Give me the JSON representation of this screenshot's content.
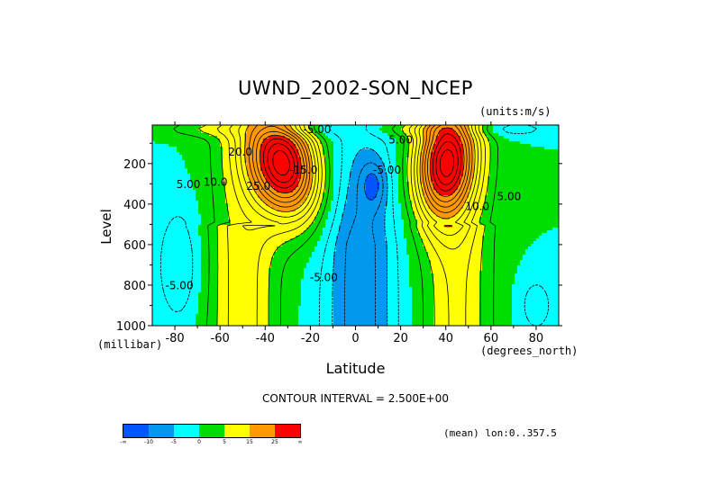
{
  "chart_data": {
    "type": "contour",
    "title": "UWND_2002-SON_NCEP",
    "units_label": "(units:m/s)",
    "xlabel": "Latitude",
    "ylabel": "Level",
    "x_units_label": "(degrees_north)",
    "y_units_label": "(millibar)",
    "xlim": [
      -90,
      90
    ],
    "ylim": [
      1000,
      10
    ],
    "y_inverted": true,
    "x_ticks": [
      -80,
      -60,
      -40,
      -20,
      0,
      20,
      40,
      60,
      80
    ],
    "x_tick_labels": [
      "-80",
      "-60",
      "-40",
      "-20",
      "0",
      "20",
      "40",
      "60",
      "80"
    ],
    "y_ticks": [
      200,
      400,
      600,
      800,
      1000
    ],
    "y_tick_labels": [
      "200",
      "400",
      "600",
      "800",
      "1000"
    ],
    "contour_interval_label": "CONTOUR INTERVAL = 2.500E+00",
    "contour_interval": 2.5,
    "mean_label": "(mean) lon:0..357.5",
    "colorbar": {
      "levels": [
        -10,
        -5,
        0,
        5,
        15,
        25
      ],
      "labels": [
        "-∞",
        "-10",
        "-5",
        "0",
        "5",
        "15",
        "25",
        "∞"
      ],
      "colors": [
        "#0055ff",
        "#0099ee",
        "#00ffff",
        "#00dd00",
        "#ffff00",
        "#ff9900",
        "#ff0000"
      ]
    },
    "jets": [
      {
        "name": "southern-jet",
        "lat": -32,
        "level": 200,
        "max": 33
      },
      {
        "name": "northern-jet",
        "lat": 40,
        "level": 200,
        "max": 30
      }
    ],
    "contour_labels": [
      {
        "text": "20.0",
        "lat": -51,
        "level": 160
      },
      {
        "text": "5.00",
        "lat": -74,
        "level": 320
      },
      {
        "text": "10.0",
        "lat": -62,
        "level": 310
      },
      {
        "text": "25.0",
        "lat": -43,
        "level": 330
      },
      {
        "text": "-15.0",
        "lat": -23,
        "level": 250
      },
      {
        "text": "-5.00",
        "lat": 14,
        "level": 250
      },
      {
        "text": "-5.00",
        "lat": -14,
        "level": 780
      },
      {
        "text": "-5.00",
        "lat": -78,
        "level": 820
      },
      {
        "text": "10.0",
        "lat": 54,
        "level": 430
      },
      {
        "text": "5.00",
        "lat": 68,
        "level": 380
      },
      {
        "text": "-5.00",
        "lat": -17,
        "level": 50
      },
      {
        "text": "5.00",
        "lat": 20,
        "level": 100
      }
    ]
  }
}
